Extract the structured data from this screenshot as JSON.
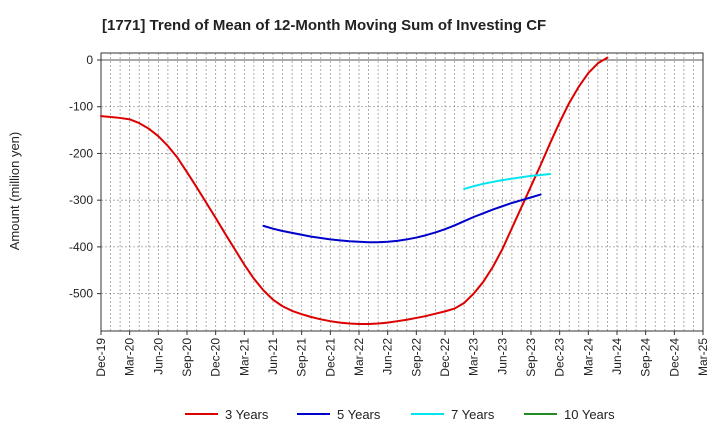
{
  "chart_data": {
    "type": "line",
    "title": "[1771]  Trend of Mean of 12-Month Moving Sum of Investing CF",
    "xlabel": "",
    "ylabel": "Amount (million yen)",
    "ylim": [
      -580,
      15
    ],
    "yticks": [
      0,
      -100,
      -200,
      -300,
      -400,
      -500
    ],
    "ytick_labels": [
      "0",
      "-100",
      "-200",
      "-300",
      "-400",
      "-500"
    ],
    "x_tick_labels": [
      "Dec-19",
      "Mar-20",
      "Jun-20",
      "Sep-20",
      "Dec-20",
      "Mar-21",
      "Jun-21",
      "Sep-21",
      "Dec-21",
      "Mar-22",
      "Jun-22",
      "Sep-22",
      "Dec-22",
      "Mar-23",
      "Jun-23",
      "Sep-23",
      "Dec-23",
      "Mar-24",
      "Jun-24",
      "Sep-24",
      "Dec-24",
      "Mar-25"
    ],
    "x_range_months": [
      0,
      63
    ],
    "grid": true,
    "series": [
      {
        "name": "3 Years",
        "color": "#dd0000",
        "points": [
          [
            0,
            -120
          ],
          [
            1,
            -122
          ],
          [
            2,
            -124
          ],
          [
            3,
            -127
          ],
          [
            4,
            -135
          ],
          [
            5,
            -147
          ],
          [
            6,
            -163
          ],
          [
            7,
            -184
          ],
          [
            8,
            -209
          ],
          [
            9,
            -240
          ],
          [
            10,
            -272
          ],
          [
            11,
            -305
          ],
          [
            12,
            -338
          ],
          [
            13,
            -372
          ],
          [
            14,
            -405
          ],
          [
            15,
            -438
          ],
          [
            16,
            -468
          ],
          [
            17,
            -493
          ],
          [
            18,
            -513
          ],
          [
            19,
            -527
          ],
          [
            20,
            -537
          ],
          [
            21,
            -544
          ],
          [
            22,
            -550
          ],
          [
            23,
            -555
          ],
          [
            24,
            -559
          ],
          [
            25,
            -562
          ],
          [
            26,
            -564
          ],
          [
            27,
            -565
          ],
          [
            28,
            -565
          ],
          [
            29,
            -564
          ],
          [
            30,
            -562
          ],
          [
            31,
            -559
          ],
          [
            32,
            -556
          ],
          [
            33,
            -552
          ],
          [
            34,
            -548
          ],
          [
            35,
            -543
          ],
          [
            36,
            -538
          ],
          [
            37,
            -532
          ],
          [
            38,
            -520
          ],
          [
            39,
            -500
          ],
          [
            40,
            -475
          ],
          [
            41,
            -443
          ],
          [
            42,
            -405
          ],
          [
            43,
            -360
          ],
          [
            44,
            -315
          ],
          [
            45,
            -270
          ],
          [
            46,
            -225
          ],
          [
            47,
            -178
          ],
          [
            48,
            -133
          ],
          [
            49,
            -92
          ],
          [
            50,
            -57
          ],
          [
            51,
            -28
          ],
          [
            52,
            -7
          ],
          [
            53,
            5
          ]
        ]
      },
      {
        "name": "5 Years",
        "color": "#0000cc",
        "points": [
          [
            17,
            -355
          ],
          [
            18,
            -361
          ],
          [
            19,
            -366
          ],
          [
            20,
            -370
          ],
          [
            21,
            -374
          ],
          [
            22,
            -378
          ],
          [
            23,
            -381
          ],
          [
            24,
            -384
          ],
          [
            25,
            -386
          ],
          [
            26,
            -388
          ],
          [
            27,
            -389
          ],
          [
            28,
            -390
          ],
          [
            29,
            -390
          ],
          [
            30,
            -389
          ],
          [
            31,
            -387
          ],
          [
            32,
            -384
          ],
          [
            33,
            -380
          ],
          [
            34,
            -375
          ],
          [
            35,
            -369
          ],
          [
            36,
            -362
          ],
          [
            37,
            -354
          ],
          [
            38,
            -345
          ],
          [
            39,
            -336
          ],
          [
            40,
            -328
          ],
          [
            41,
            -320
          ],
          [
            42,
            -313
          ],
          [
            43,
            -306
          ],
          [
            44,
            -300
          ],
          [
            45,
            -294
          ],
          [
            46,
            -288
          ]
        ]
      },
      {
        "name": "7 Years",
        "color": "#00e5ee",
        "points": [
          [
            38,
            -276
          ],
          [
            39,
            -270
          ],
          [
            40,
            -265
          ],
          [
            41,
            -261
          ],
          [
            42,
            -257
          ],
          [
            43,
            -254
          ],
          [
            44,
            -251
          ],
          [
            45,
            -248
          ],
          [
            46,
            -246
          ],
          [
            47,
            -244
          ]
        ]
      },
      {
        "name": "10 Years",
        "color": "#228b22",
        "points": []
      }
    ]
  }
}
